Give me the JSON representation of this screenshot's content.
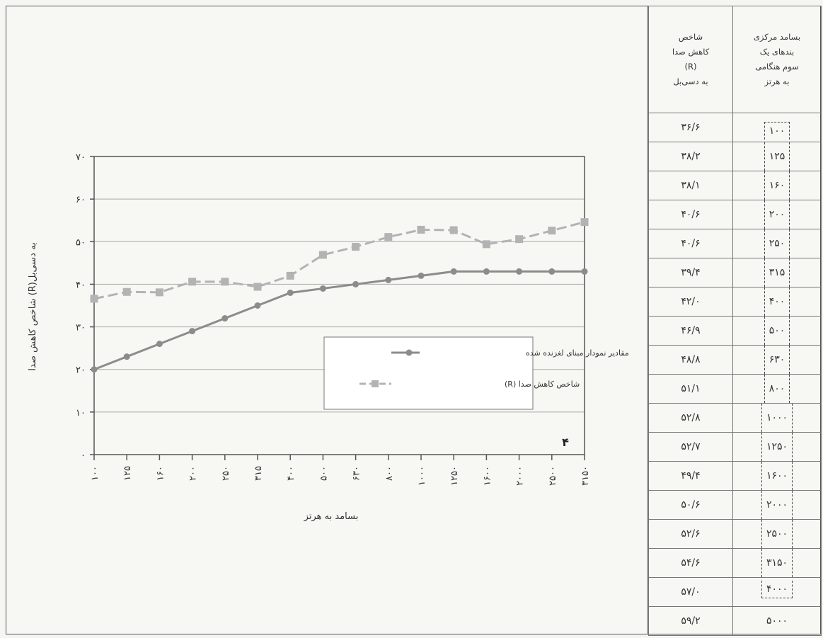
{
  "table": {
    "header_r": [
      "شاخص",
      "کاهش صدا",
      "(R)",
      "به دسی‌بل"
    ],
    "header_freq": [
      "بسامد مرکزی",
      "بندهای یک",
      "سوم هنگامی",
      "به هرتز"
    ],
    "rows": [
      {
        "r": "۳۶/۶",
        "freq": "۱۰۰"
      },
      {
        "r": "۳۸/۲",
        "freq": "۱۲۵"
      },
      {
        "r": "۳۸/۱",
        "freq": "۱۶۰"
      },
      {
        "r": "۴۰/۶",
        "freq": "۲۰۰"
      },
      {
        "r": "۴۰/۶",
        "freq": "۲۵۰"
      },
      {
        "r": "۳۹/۴",
        "freq": "۳۱۵"
      },
      {
        "r": "۴۲/۰",
        "freq": "۴۰۰"
      },
      {
        "r": "۴۶/۹",
        "freq": "۵۰۰"
      },
      {
        "r": "۴۸/۸",
        "freq": "۶۳۰"
      },
      {
        "r": "۵۱/۱",
        "freq": "۸۰۰"
      },
      {
        "r": "۵۲/۸",
        "freq": "۱۰۰۰"
      },
      {
        "r": "۵۲/۷",
        "freq": "۱۲۵۰"
      },
      {
        "r": "۴۹/۴",
        "freq": "۱۶۰۰"
      },
      {
        "r": "۵۰/۶",
        "freq": "۲۰۰۰"
      },
      {
        "r": "۵۲/۶",
        "freq": "۲۵۰۰"
      },
      {
        "r": "۵۴/۶",
        "freq": "۳۱۵۰"
      },
      {
        "r": "۵۷/۰",
        "freq": "۴۰۰۰"
      },
      {
        "r": "۵۹/۲",
        "freq": "۵۰۰۰"
      }
    ]
  },
  "chart_data": {
    "type": "line",
    "xlabel": "بسامد به هرتز",
    "ylabel": "شاخص کاهش صدا (R)به دسی‌بل",
    "panel_number": "۴",
    "ylim": [
      0,
      70
    ],
    "y_ticks": [
      "۰",
      "۱۰",
      "۲۰",
      "۳۰",
      "۴۰",
      "۵۰",
      "۶۰",
      "۷۰"
    ],
    "categories": [
      "۱۰۰",
      "۱۲۵",
      "۱۶۰",
      "۲۰۰",
      "۲۵۰",
      "۳۱۵",
      "۴۰۰",
      "۵۰۰",
      "۶۳۰",
      "۸۰۰",
      "۱۰۰۰",
      "۱۲۵۰",
      "۱۶۰۰",
      "۲۰۰۰",
      "۲۵۰۰",
      "۳۱۵۰"
    ],
    "grid": true,
    "legend_position": "center-right",
    "series": [
      {
        "name": "مقادیر نمودار مبنای لغزنده شده",
        "marker": "circle",
        "color": "#8c8c8c",
        "values": [
          20,
          23,
          26,
          29,
          32,
          35,
          38,
          39,
          40,
          41,
          42,
          43,
          43,
          43,
          43,
          43
        ]
      },
      {
        "name": "شاخص کاهش صدا (R)",
        "marker": "square",
        "color": "#b3b3b3",
        "values": [
          36.6,
          38.2,
          38.1,
          40.6,
          40.6,
          39.4,
          42.0,
          46.9,
          48.8,
          51.1,
          52.8,
          52.7,
          49.4,
          50.6,
          52.6,
          54.6
        ]
      }
    ]
  }
}
